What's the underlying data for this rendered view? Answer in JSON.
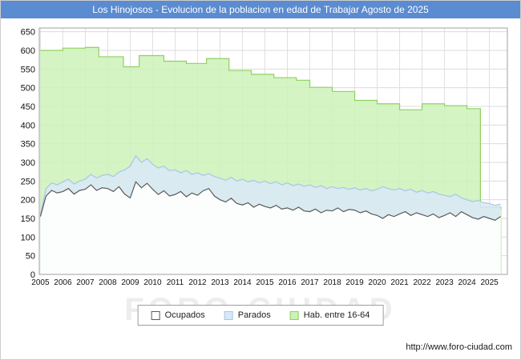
{
  "title_bar": {
    "title": "Los Hinojosos - Evolucion de la poblacion en edad de Trabajar Agosto de 2025",
    "background": "#5b8bd0",
    "text_color": "#ffffff"
  },
  "watermark": "FORO-CIUDAD",
  "footer": {
    "url": "http://www.foro-ciudad.com"
  },
  "legend": {
    "items": [
      {
        "label": "Ocupados",
        "fill": "#ffffff",
        "stroke": "#5a5a5a"
      },
      {
        "label": "Parados",
        "fill": "#d9e8f8",
        "stroke": "#a8c6e8"
      },
      {
        "label": "Hab. entre 16-64",
        "fill": "#ccf2b8",
        "stroke": "#90d060"
      }
    ]
  },
  "chart_data": {
    "type": "area",
    "title": "Los Hinojosos - Evolucion de la poblacion en edad de Trabajar Agosto de 2025",
    "xlabel": "",
    "ylabel": "",
    "grid": true,
    "legend_position": "bottom",
    "x_range": [
      2004.95,
      2025.8
    ],
    "y_range": [
      0,
      660
    ],
    "y_ticks": [
      0,
      50,
      100,
      150,
      200,
      250,
      300,
      350,
      400,
      450,
      500,
      550,
      600,
      650
    ],
    "x_ticks": [
      2005,
      2006,
      2007,
      2008,
      2009,
      2010,
      2011,
      2012,
      2013,
      2014,
      2015,
      2016,
      2017,
      2018,
      2019,
      2020,
      2021,
      2022,
      2023,
      2024,
      2025
    ],
    "series": [
      {
        "name": "Hab. entre 16-64",
        "mode": "step",
        "fill": "#ccf2b8",
        "line": "#90d060",
        "points": [
          [
            2005,
            600
          ],
          [
            2006,
            606
          ],
          [
            2007,
            608
          ],
          [
            2007.6,
            583
          ],
          [
            2008.7,
            556
          ],
          [
            2009.4,
            586
          ],
          [
            2010.5,
            571
          ],
          [
            2011.5,
            565
          ],
          [
            2012.4,
            578
          ],
          [
            2013.4,
            546
          ],
          [
            2014.4,
            536
          ],
          [
            2015.4,
            527
          ],
          [
            2016.4,
            520
          ],
          [
            2017,
            501
          ],
          [
            2018,
            490
          ],
          [
            2019,
            466
          ],
          [
            2020,
            457
          ],
          [
            2021,
            441
          ],
          [
            2022,
            457
          ],
          [
            2023,
            452
          ],
          [
            2024,
            444
          ],
          [
            2024.6,
            180
          ],
          [
            2025.5,
            178
          ]
        ]
      },
      {
        "name": "Parados",
        "mode": "line",
        "fill": "#d9e8f8",
        "line": "#a8c6e8",
        "x_start": 2005.0,
        "x_step": 0.25,
        "values": [
          160,
          230,
          245,
          240,
          248,
          255,
          242,
          250,
          255,
          268,
          258,
          265,
          268,
          262,
          274,
          280,
          290,
          318,
          300,
          310,
          295,
          285,
          290,
          278,
          280,
          272,
          278,
          268,
          272,
          265,
          270,
          262,
          258,
          252,
          260,
          250,
          255,
          248,
          252,
          245,
          250,
          243,
          248,
          240,
          245,
          238,
          242,
          236,
          240,
          233,
          238,
          230,
          235,
          230,
          233,
          228,
          232,
          226,
          230,
          224,
          228,
          235,
          230,
          226,
          230,
          224,
          228,
          220,
          225,
          218,
          222,
          215,
          212,
          208,
          215,
          205,
          200,
          195,
          198,
          192,
          190,
          185,
          188
        ]
      },
      {
        "name": "Ocupados",
        "mode": "line",
        "fill": "#ffffff",
        "line": "#5a5a5a",
        "x_start": 2005.0,
        "x_step": 0.25,
        "values": [
          155,
          210,
          225,
          218,
          222,
          230,
          215,
          225,
          228,
          240,
          225,
          232,
          230,
          222,
          235,
          215,
          205,
          248,
          232,
          244,
          228,
          214,
          224,
          210,
          214,
          222,
          208,
          218,
          212,
          224,
          230,
          210,
          200,
          194,
          204,
          190,
          186,
          192,
          180,
          188,
          182,
          178,
          185,
          175,
          178,
          172,
          180,
          170,
          168,
          175,
          165,
          172,
          170,
          178,
          168,
          174,
          172,
          165,
          170,
          162,
          158,
          150,
          160,
          155,
          162,
          168,
          158,
          165,
          160,
          155,
          162,
          152,
          158,
          165,
          155,
          168,
          160,
          152,
          148,
          155,
          150,
          145,
          155
        ]
      }
    ]
  }
}
